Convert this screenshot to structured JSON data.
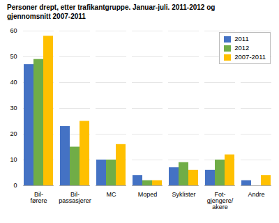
{
  "chart_data": {
    "type": "bar",
    "title": "Personer drept, etter trafikantgruppe. Januar-juli. 2011-2012 og\ngjennomsnitt 2007-2011",
    "categories": [
      "Bil-\nførere",
      "Bil-\npassasjerer",
      "MC",
      "Moped",
      "Syklister",
      "Fot-\ngjengere/\nakere",
      "Andre"
    ],
    "series": [
      {
        "name": "2011",
        "color": "#4472C4",
        "values": [
          47,
          23,
          10,
          4,
          7,
          6,
          2
        ]
      },
      {
        "name": "2012",
        "color": "#70AD47",
        "values": [
          49,
          15,
          10,
          2,
          9,
          10,
          0
        ]
      },
      {
        "name": "2007-2011",
        "color": "#FFC000",
        "values": [
          58,
          25,
          16,
          2,
          6,
          12,
          4
        ]
      }
    ],
    "ylim": [
      0,
      60
    ],
    "yticks": [
      0,
      10,
      20,
      30,
      40,
      50,
      60
    ],
    "grid": true,
    "legend": "upper right"
  }
}
